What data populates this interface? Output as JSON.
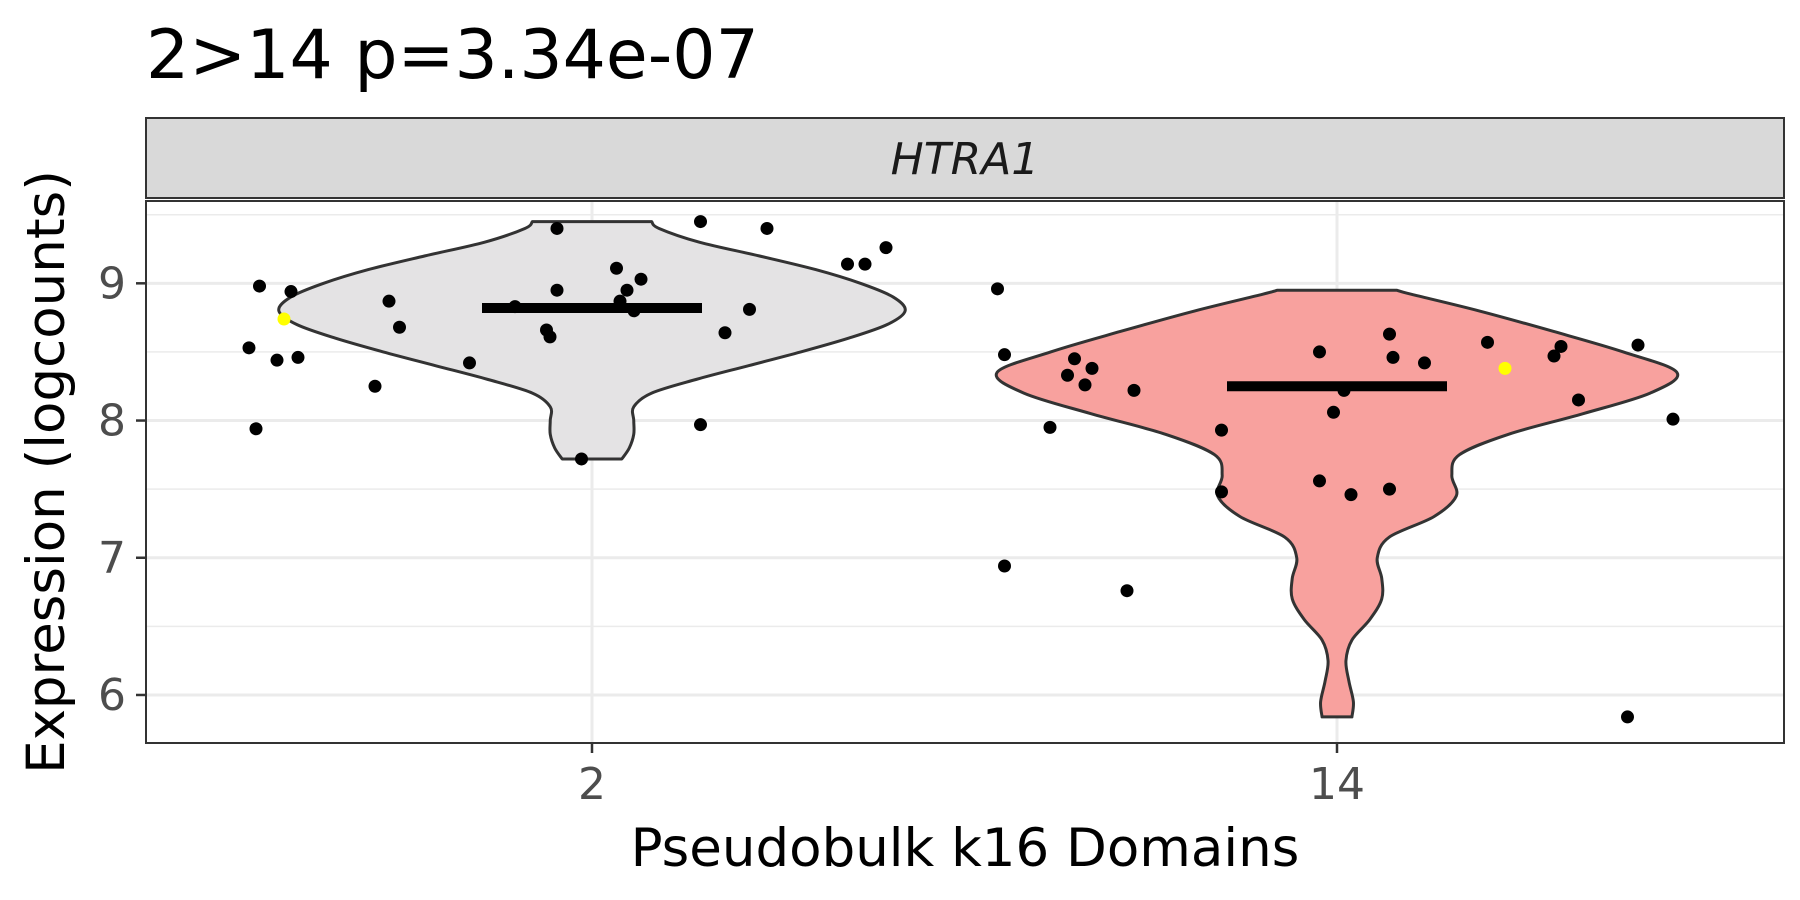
{
  "chart_data": {
    "type": "violin",
    "title": "2>14 p=3.34e-07",
    "facet_label": "HTRA1",
    "xlabel": "Pseudobulk k16 Domains",
    "ylabel": "Expression (logcounts)",
    "categories": [
      "2",
      "14"
    ],
    "y_ticks": [
      6,
      7,
      8,
      9
    ],
    "ylim": [
      5.65,
      9.6
    ],
    "grid": true,
    "colors": {
      "2": "#e4e3e4",
      "14": "#f8a19e",
      "highlight_point": "#ffff00",
      "point": "#000000",
      "outline": "#333333"
    },
    "groups": [
      {
        "category": "2",
        "median": 8.82,
        "violin_profile": [
          {
            "y": 7.72,
            "w": 0.2
          },
          {
            "y": 7.8,
            "w": 0.25
          },
          {
            "y": 7.9,
            "w": 0.28
          },
          {
            "y": 8.0,
            "w": 0.28
          },
          {
            "y": 8.1,
            "w": 0.28
          },
          {
            "y": 8.2,
            "w": 0.4
          },
          {
            "y": 8.3,
            "w": 0.7
          },
          {
            "y": 8.4,
            "w": 1.05
          },
          {
            "y": 8.5,
            "w": 1.4
          },
          {
            "y": 8.6,
            "w": 1.72
          },
          {
            "y": 8.7,
            "w": 1.98
          },
          {
            "y": 8.8,
            "w": 2.1
          },
          {
            "y": 8.9,
            "w": 2.02
          },
          {
            "y": 9.0,
            "w": 1.8
          },
          {
            "y": 9.1,
            "w": 1.5
          },
          {
            "y": 9.2,
            "w": 1.12
          },
          {
            "y": 9.3,
            "w": 0.72
          },
          {
            "y": 9.4,
            "w": 0.45
          },
          {
            "y": 9.45,
            "w": 0.4
          }
        ],
        "points": [
          {
            "x": -0.95,
            "y": 8.98
          },
          {
            "x": -0.88,
            "y": 8.74,
            "highlight": true
          },
          {
            "x": -0.86,
            "y": 8.94
          },
          {
            "x": -0.98,
            "y": 8.53
          },
          {
            "x": -0.9,
            "y": 8.44
          },
          {
            "x": -0.84,
            "y": 8.46
          },
          {
            "x": -0.96,
            "y": 7.94
          },
          {
            "x": -0.58,
            "y": 8.87
          },
          {
            "x": -0.55,
            "y": 8.68
          },
          {
            "x": -0.62,
            "y": 8.25
          },
          {
            "x": -0.35,
            "y": 8.42
          },
          {
            "x": -0.22,
            "y": 8.83
          },
          {
            "x": -0.13,
            "y": 8.66
          },
          {
            "x": -0.12,
            "y": 8.61
          },
          {
            "x": -0.1,
            "y": 8.95
          },
          {
            "x": -0.1,
            "y": 9.4
          },
          {
            "x": 0.07,
            "y": 9.11
          },
          {
            "x": 0.08,
            "y": 8.87
          },
          {
            "x": 0.1,
            "y": 8.95
          },
          {
            "x": 0.12,
            "y": 8.8
          },
          {
            "x": 0.14,
            "y": 9.03
          },
          {
            "x": -0.03,
            "y": 7.72
          },
          {
            "x": 0.31,
            "y": 9.45
          },
          {
            "x": 0.31,
            "y": 7.97
          },
          {
            "x": 0.38,
            "y": 8.64
          },
          {
            "x": 0.45,
            "y": 8.81
          },
          {
            "x": 0.5,
            "y": 9.4
          },
          {
            "x": 0.73,
            "y": 9.14
          },
          {
            "x": 0.78,
            "y": 9.14
          },
          {
            "x": 0.84,
            "y": 9.26
          }
        ]
      },
      {
        "category": "14",
        "median": 8.25,
        "violin_profile": [
          {
            "y": 5.84,
            "w": 0.1
          },
          {
            "y": 5.95,
            "w": 0.11
          },
          {
            "y": 6.1,
            "w": 0.08
          },
          {
            "y": 6.25,
            "w": 0.06
          },
          {
            "y": 6.4,
            "w": 0.1
          },
          {
            "y": 6.55,
            "w": 0.22
          },
          {
            "y": 6.7,
            "w": 0.3
          },
          {
            "y": 6.85,
            "w": 0.3
          },
          {
            "y": 7.0,
            "w": 0.27
          },
          {
            "y": 7.15,
            "w": 0.35
          },
          {
            "y": 7.3,
            "w": 0.65
          },
          {
            "y": 7.45,
            "w": 0.8
          },
          {
            "y": 7.6,
            "w": 0.77
          },
          {
            "y": 7.75,
            "w": 0.82
          },
          {
            "y": 7.9,
            "w": 1.15
          },
          {
            "y": 8.05,
            "w": 1.65
          },
          {
            "y": 8.2,
            "w": 2.1
          },
          {
            "y": 8.35,
            "w": 2.28
          },
          {
            "y": 8.5,
            "w": 1.92
          },
          {
            "y": 8.65,
            "w": 1.45
          },
          {
            "y": 8.8,
            "w": 0.95
          },
          {
            "y": 8.92,
            "w": 0.5
          },
          {
            "y": 8.95,
            "w": 0.4
          }
        ],
        "points": [
          {
            "x": -0.97,
            "y": 8.96
          },
          {
            "x": -0.95,
            "y": 8.48
          },
          {
            "x": -0.77,
            "y": 8.33
          },
          {
            "x": -0.75,
            "y": 8.45
          },
          {
            "x": -0.72,
            "y": 8.26
          },
          {
            "x": -0.7,
            "y": 8.38
          },
          {
            "x": -0.82,
            "y": 7.95
          },
          {
            "x": -0.58,
            "y": 8.22
          },
          {
            "x": -0.95,
            "y": 6.94
          },
          {
            "x": -0.6,
            "y": 6.76
          },
          {
            "x": -0.33,
            "y": 7.93
          },
          {
            "x": -0.33,
            "y": 7.48
          },
          {
            "x": -0.05,
            "y": 8.5
          },
          {
            "x": -0.05,
            "y": 7.56
          },
          {
            "x": -0.01,
            "y": 8.06
          },
          {
            "x": 0.02,
            "y": 8.22
          },
          {
            "x": 0.04,
            "y": 7.46
          },
          {
            "x": 0.15,
            "y": 7.5
          },
          {
            "x": 0.15,
            "y": 8.63
          },
          {
            "x": 0.16,
            "y": 8.46
          },
          {
            "x": 0.25,
            "y": 8.42
          },
          {
            "x": 0.43,
            "y": 8.57
          },
          {
            "x": 0.48,
            "y": 8.38,
            "highlight": true
          },
          {
            "x": 0.62,
            "y": 8.47
          },
          {
            "x": 0.64,
            "y": 8.54
          },
          {
            "x": 0.69,
            "y": 8.15
          },
          {
            "x": 0.86,
            "y": 8.55
          },
          {
            "x": 0.96,
            "y": 8.01
          },
          {
            "x": 0.83,
            "y": 5.84
          }
        ]
      }
    ]
  }
}
